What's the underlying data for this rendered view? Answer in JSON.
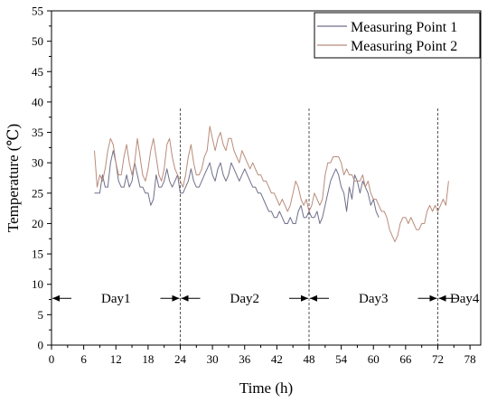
{
  "chart_data": {
    "type": "line",
    "xlabel": "Time (h)",
    "ylabel": "Temperature (℃)",
    "xlim": [
      0,
      80
    ],
    "ylim": [
      0,
      55
    ],
    "x_ticks": [
      0,
      6,
      12,
      18,
      24,
      30,
      36,
      42,
      48,
      54,
      60,
      66,
      72,
      78
    ],
    "x_tick_labels": [
      "0",
      "6",
      "12",
      "18",
      "24",
      "30",
      "36",
      "42",
      "48",
      "54",
      "60",
      "66",
      "72",
      "78"
    ],
    "y_ticks": [
      0,
      5,
      10,
      15,
      20,
      25,
      30,
      35,
      40,
      45,
      50,
      55
    ],
    "y_tick_labels": [
      "0",
      "5",
      "10",
      "15",
      "20",
      "25",
      "30",
      "35",
      "40",
      "45",
      "50",
      "55"
    ],
    "grid": false,
    "legend_position": "top-right",
    "day_boundaries": [
      24,
      48,
      72
    ],
    "day_labels": [
      {
        "text": "Day1",
        "x": 12
      },
      {
        "text": "Day2",
        "x": 36
      },
      {
        "text": "Day3",
        "x": 60
      },
      {
        "text": "Day4",
        "x": 77
      }
    ],
    "arrow_y": 7.7,
    "series": [
      {
        "name": "Measuring Point 1",
        "color": "#6f6f8a",
        "points": [
          [
            8.0,
            25
          ],
          [
            9.0,
            25
          ],
          [
            9.5,
            28
          ],
          [
            10.0,
            26
          ],
          [
            10.5,
            26
          ],
          [
            11.0,
            30
          ],
          [
            11.5,
            32
          ],
          [
            12.0,
            30
          ],
          [
            12.5,
            27
          ],
          [
            13.0,
            26
          ],
          [
            13.5,
            26
          ],
          [
            14.0,
            28
          ],
          [
            14.5,
            26
          ],
          [
            15.0,
            27
          ],
          [
            15.5,
            30
          ],
          [
            16.0,
            28
          ],
          [
            16.5,
            26
          ],
          [
            17.0,
            26
          ],
          [
            17.5,
            25
          ],
          [
            18.0,
            25
          ],
          [
            18.5,
            23
          ],
          [
            19.0,
            24
          ],
          [
            19.5,
            28
          ],
          [
            20.0,
            26
          ],
          [
            20.5,
            26
          ],
          [
            21.0,
            27
          ],
          [
            21.5,
            29
          ],
          [
            22.0,
            27
          ],
          [
            22.5,
            26
          ],
          [
            23.0,
            27
          ],
          [
            23.5,
            28
          ],
          [
            24.0,
            25
          ],
          [
            24.5,
            25
          ],
          [
            25.0,
            26
          ],
          [
            25.5,
            27
          ],
          [
            26.0,
            29
          ],
          [
            26.5,
            27
          ],
          [
            27.0,
            26
          ],
          [
            27.5,
            26
          ],
          [
            28.0,
            27
          ],
          [
            28.5,
            28
          ],
          [
            29.0,
            29
          ],
          [
            29.5,
            30
          ],
          [
            30.0,
            28
          ],
          [
            30.5,
            27
          ],
          [
            31.0,
            29
          ],
          [
            31.5,
            30
          ],
          [
            32.0,
            28
          ],
          [
            32.5,
            27
          ],
          [
            33.0,
            28
          ],
          [
            33.5,
            30
          ],
          [
            34.0,
            29
          ],
          [
            34.5,
            28
          ],
          [
            35.0,
            27
          ],
          [
            35.5,
            28
          ],
          [
            36.0,
            29
          ],
          [
            36.5,
            28
          ],
          [
            37.0,
            27
          ],
          [
            37.5,
            26
          ],
          [
            38.0,
            26
          ],
          [
            38.5,
            25
          ],
          [
            39.0,
            25
          ],
          [
            39.5,
            24
          ],
          [
            40.0,
            23
          ],
          [
            40.5,
            22
          ],
          [
            41.0,
            22
          ],
          [
            41.5,
            21
          ],
          [
            42.0,
            21
          ],
          [
            42.5,
            22
          ],
          [
            43.0,
            21
          ],
          [
            43.5,
            20
          ],
          [
            44.0,
            20
          ],
          [
            44.5,
            21
          ],
          [
            45.0,
            20
          ],
          [
            45.5,
            20
          ],
          [
            46.0,
            22
          ],
          [
            46.5,
            23
          ],
          [
            47.0,
            21
          ],
          [
            47.5,
            21
          ],
          [
            48.0,
            22
          ],
          [
            48.5,
            21
          ],
          [
            49.0,
            21
          ],
          [
            49.5,
            22
          ],
          [
            50.0,
            20
          ],
          [
            50.5,
            21
          ],
          [
            51.0,
            23
          ],
          [
            51.5,
            25
          ],
          [
            52.0,
            27
          ],
          [
            52.5,
            28
          ],
          [
            53.0,
            29
          ],
          [
            53.5,
            28
          ],
          [
            54.0,
            26
          ],
          [
            54.5,
            25
          ],
          [
            55.0,
            22
          ],
          [
            55.5,
            26
          ],
          [
            56.0,
            24
          ],
          [
            56.5,
            28
          ],
          [
            57.0,
            27
          ],
          [
            57.5,
            25
          ],
          [
            58.0,
            27
          ],
          [
            58.5,
            26
          ],
          [
            59.0,
            25
          ],
          [
            59.5,
            23
          ],
          [
            60.0,
            24
          ],
          [
            60.5,
            22
          ],
          [
            61.0,
            21
          ]
        ]
      },
      {
        "name": "Measuring Point 2",
        "color": "#b98c7a",
        "points": [
          [
            8.0,
            32
          ],
          [
            8.5,
            26
          ],
          [
            9.0,
            28
          ],
          [
            9.5,
            27
          ],
          [
            10.0,
            29
          ],
          [
            10.5,
            32
          ],
          [
            11.0,
            34
          ],
          [
            11.5,
            33
          ],
          [
            12.0,
            30
          ],
          [
            12.5,
            28
          ],
          [
            13.0,
            28
          ],
          [
            13.5,
            31
          ],
          [
            14.0,
            33
          ],
          [
            14.5,
            30
          ],
          [
            15.0,
            28
          ],
          [
            15.5,
            30
          ],
          [
            16.0,
            34
          ],
          [
            16.5,
            31
          ],
          [
            17.0,
            28
          ],
          [
            17.5,
            27
          ],
          [
            18.0,
            29
          ],
          [
            18.5,
            32
          ],
          [
            19.0,
            34
          ],
          [
            19.5,
            31
          ],
          [
            20.0,
            28
          ],
          [
            20.5,
            27
          ],
          [
            21.0,
            29
          ],
          [
            21.5,
            33
          ],
          [
            22.0,
            34
          ],
          [
            22.5,
            31
          ],
          [
            23.0,
            29
          ],
          [
            23.5,
            28
          ],
          [
            24.0,
            27
          ],
          [
            24.5,
            26
          ],
          [
            25.0,
            28
          ],
          [
            25.5,
            31
          ],
          [
            26.0,
            33
          ],
          [
            26.5,
            30
          ],
          [
            27.0,
            28
          ],
          [
            27.5,
            28
          ],
          [
            28.0,
            29
          ],
          [
            28.5,
            31
          ],
          [
            29.0,
            32
          ],
          [
            29.5,
            36
          ],
          [
            30.0,
            34
          ],
          [
            30.5,
            32
          ],
          [
            31.0,
            34
          ],
          [
            31.5,
            35
          ],
          [
            32.0,
            33
          ],
          [
            32.5,
            32
          ],
          [
            33.0,
            34
          ],
          [
            33.5,
            34
          ],
          [
            34.0,
            32
          ],
          [
            34.5,
            31
          ],
          [
            35.0,
            30
          ],
          [
            35.5,
            32
          ],
          [
            36.0,
            31
          ],
          [
            36.5,
            30
          ],
          [
            37.0,
            29
          ],
          [
            37.5,
            30
          ],
          [
            38.0,
            29
          ],
          [
            38.5,
            28
          ],
          [
            39.0,
            28
          ],
          [
            39.5,
            27
          ],
          [
            40.0,
            27
          ],
          [
            40.5,
            26
          ],
          [
            41.0,
            25
          ],
          [
            41.5,
            25
          ],
          [
            42.0,
            24
          ],
          [
            42.5,
            23
          ],
          [
            43.0,
            24
          ],
          [
            43.5,
            23
          ],
          [
            44.0,
            22
          ],
          [
            44.5,
            23
          ],
          [
            45.0,
            25
          ],
          [
            45.5,
            27
          ],
          [
            46.0,
            26
          ],
          [
            46.5,
            24
          ],
          [
            47.0,
            23
          ],
          [
            47.5,
            24
          ],
          [
            48.0,
            22
          ],
          [
            48.5,
            23
          ],
          [
            49.0,
            25
          ],
          [
            49.5,
            24
          ],
          [
            50.0,
            23
          ],
          [
            50.5,
            24
          ],
          [
            51.0,
            28
          ],
          [
            51.5,
            30
          ],
          [
            52.0,
            30
          ],
          [
            52.5,
            31
          ],
          [
            53.0,
            31
          ],
          [
            53.5,
            31
          ],
          [
            54.0,
            30
          ],
          [
            54.5,
            28
          ],
          [
            55.0,
            29
          ],
          [
            55.5,
            28
          ],
          [
            56.0,
            28
          ],
          [
            56.5,
            27
          ],
          [
            57.0,
            27
          ],
          [
            57.5,
            27
          ],
          [
            58.0,
            28
          ],
          [
            58.5,
            26
          ],
          [
            59.0,
            27
          ],
          [
            59.5,
            25
          ],
          [
            60.0,
            24
          ],
          [
            60.5,
            24
          ],
          [
            61.0,
            23
          ],
          [
            61.5,
            22
          ],
          [
            62.0,
            22
          ],
          [
            62.5,
            21
          ],
          [
            63.0,
            19
          ],
          [
            63.5,
            18
          ],
          [
            64.0,
            17
          ],
          [
            64.5,
            18
          ],
          [
            65.0,
            20
          ],
          [
            65.5,
            21
          ],
          [
            66.0,
            21
          ],
          [
            66.5,
            20
          ],
          [
            67.0,
            21
          ],
          [
            67.5,
            20
          ],
          [
            68.0,
            19
          ],
          [
            68.5,
            19
          ],
          [
            69.0,
            20
          ],
          [
            69.5,
            20
          ],
          [
            70.0,
            22
          ],
          [
            70.5,
            23
          ],
          [
            71.0,
            22
          ],
          [
            71.5,
            23
          ],
          [
            72.0,
            22
          ],
          [
            72.5,
            23
          ],
          [
            73.0,
            24
          ],
          [
            73.5,
            23
          ],
          [
            74.0,
            27
          ]
        ]
      }
    ]
  }
}
